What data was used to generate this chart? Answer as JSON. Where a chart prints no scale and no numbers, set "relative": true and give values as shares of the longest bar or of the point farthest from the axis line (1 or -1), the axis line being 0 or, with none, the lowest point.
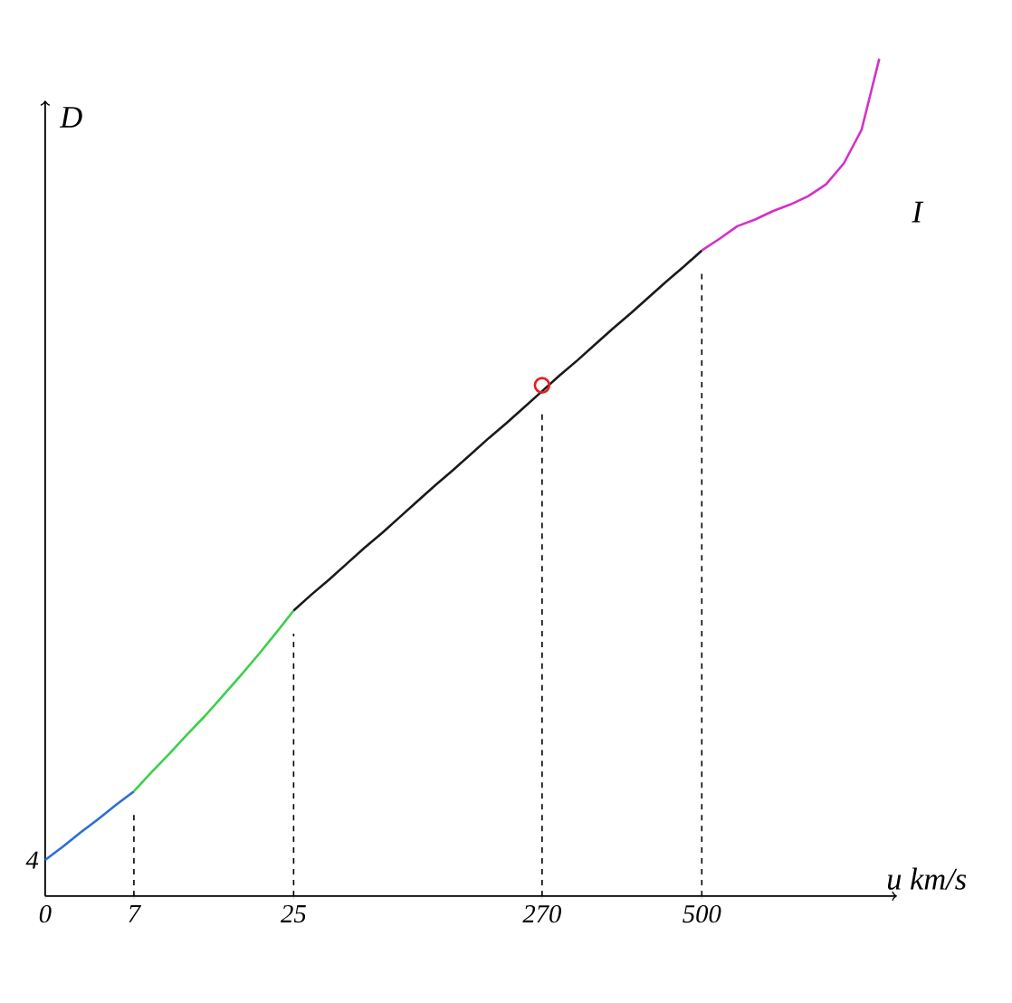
{
  "chart_data": {
    "type": "line",
    "relative": true,
    "xlabel": "u km/s",
    "ylabel": "D",
    "categories": [
      "0",
      null,
      null,
      null,
      null,
      "7",
      null,
      null,
      null,
      null,
      null,
      null,
      null,
      null,
      "25",
      null,
      null,
      null,
      null,
      null,
      null,
      null,
      null,
      null,
      null,
      null,
      null,
      null,
      "270",
      null,
      null,
      null,
      null,
      null,
      null,
      null,
      null,
      "500",
      null,
      null,
      null,
      null,
      null,
      null,
      null,
      null,
      null,
      null,
      null
    ],
    "series": [
      {
        "color": "#2a6fd6",
        "values": [
          0.043,
          0.059,
          0.076,
          0.092,
          0.109,
          0.125,
          null,
          null,
          null,
          null,
          null,
          null,
          null,
          null,
          null,
          null,
          null,
          null,
          null,
          null,
          null,
          null,
          null,
          null,
          null,
          null,
          null,
          null,
          null,
          null,
          null,
          null,
          null,
          null,
          null,
          null,
          null,
          null,
          null,
          null,
          null,
          null,
          null,
          null,
          null,
          null,
          null,
          null,
          null
        ]
      },
      {
        "color": "#3ccf4a",
        "values": [
          null,
          null,
          null,
          null,
          null,
          0.125,
          0.148,
          0.17,
          0.193,
          0.215,
          0.239,
          0.263,
          0.288,
          0.314,
          0.341,
          null,
          null,
          null,
          null,
          null,
          null,
          null,
          null,
          null,
          null,
          null,
          null,
          null,
          null,
          null,
          null,
          null,
          null,
          null,
          null,
          null,
          null,
          null,
          null,
          null,
          null,
          null,
          null,
          null,
          null,
          null,
          null,
          null,
          null
        ]
      },
      {
        "color": "#1a1a1a",
        "values": [
          null,
          null,
          null,
          null,
          null,
          null,
          null,
          null,
          null,
          null,
          null,
          null,
          null,
          null,
          0.341,
          0.36,
          0.378,
          0.397,
          0.416,
          0.434,
          0.453,
          0.472,
          0.491,
          0.509,
          0.528,
          0.547,
          0.565,
          0.584,
          0.603,
          0.622,
          0.64,
          0.659,
          0.678,
          0.696,
          0.715,
          0.734,
          0.752,
          0.771,
          null,
          null,
          null,
          null,
          null,
          null,
          null,
          null,
          null,
          null,
          null
        ]
      },
      {
        "color": "#d62fc8",
        "values": [
          null,
          null,
          null,
          null,
          null,
          null,
          null,
          null,
          null,
          null,
          null,
          null,
          null,
          null,
          null,
          null,
          null,
          null,
          null,
          null,
          null,
          null,
          null,
          null,
          null,
          null,
          null,
          null,
          null,
          null,
          null,
          null,
          null,
          null,
          null,
          null,
          null,
          0.771,
          0.785,
          0.8,
          0.808,
          0.818,
          0.826,
          0.836,
          0.85,
          0.875,
          0.915,
          1.0,
          null
        ]
      },
      {
        "type": "scatter",
        "marker": "circle",
        "color": "#e02020",
        "x": [
          "270"
        ],
        "values": [
          0.61
        ]
      }
    ],
    "ref_lines": [
      {
        "axis": "x",
        "value": "7",
        "line_style": "dashed"
      },
      {
        "axis": "x",
        "value": "25",
        "line_style": "dashed"
      },
      {
        "axis": "x",
        "value": "270",
        "line_style": "dashed"
      },
      {
        "axis": "x",
        "value": "500",
        "line_style": "dashed"
      }
    ],
    "annotations": [
      {
        "text": "4",
        "x": "0",
        "y": 0.043
      },
      "I"
    ]
  }
}
